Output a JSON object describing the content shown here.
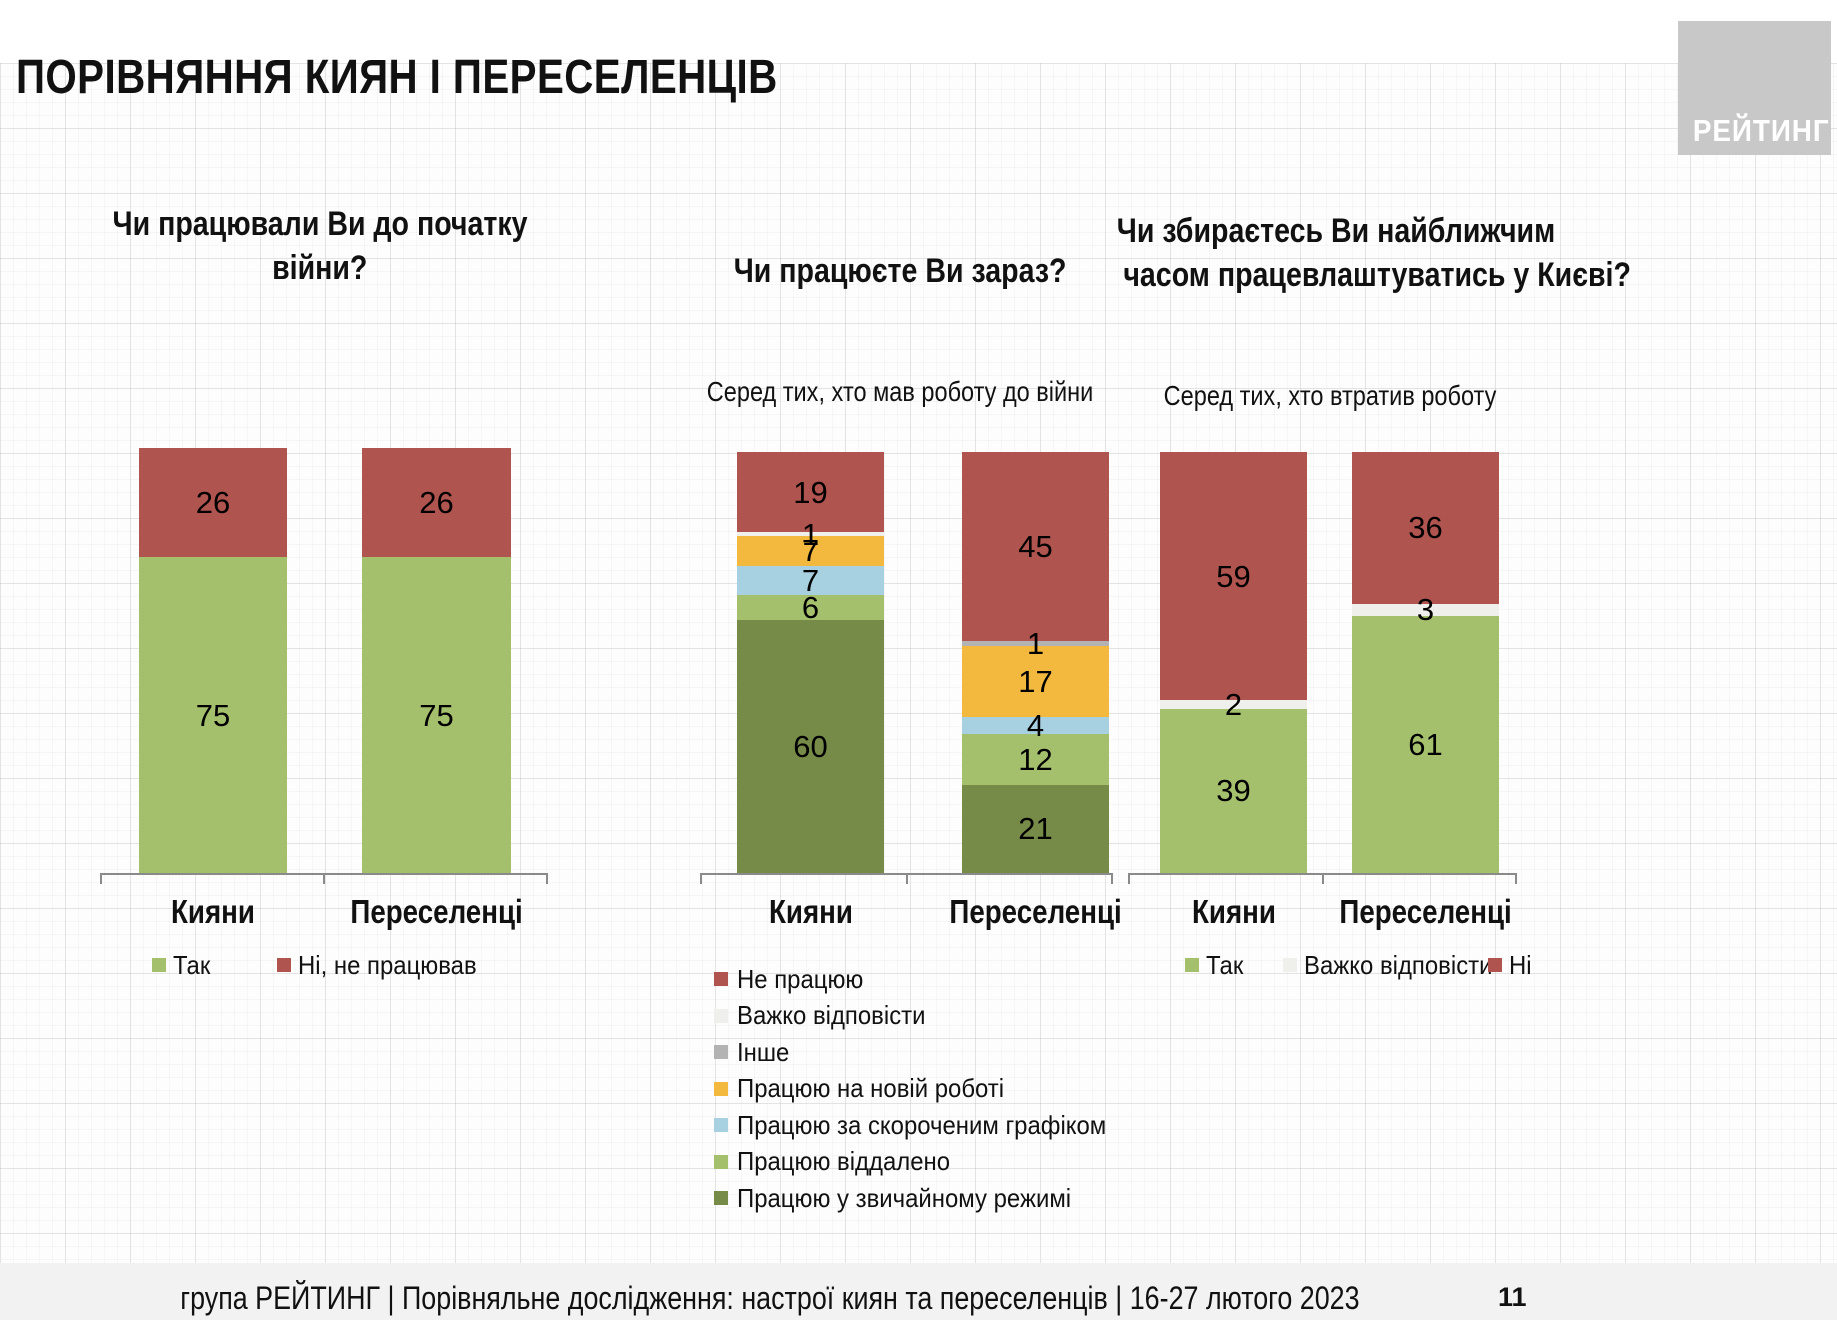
{
  "page": {
    "title": "ПОРІВНЯННЯ КИЯН І ПЕРЕСЕЛЕНЦІВ",
    "logo_text": "РЕЙТИНГ",
    "footer": "група РЕЙТИНГ | Порівняльне дослідження: настрої киян та переселенців | 16-27 лютого 2023",
    "page_number": "11"
  },
  "colors": {
    "red": "#b0544f",
    "green_light": "#a4c06c",
    "green_dark": "#768b48",
    "yellow": "#f2b93e",
    "blue_light": "#a7d0e0",
    "offwhite": "#efefec",
    "gray": "#b3b3b3",
    "logo_gray": "#c8c8c8"
  },
  "chart_data": [
    {
      "type": "bar",
      "stacked": true,
      "title": "Чи працювали Ви до початку війни?",
      "title_lines": "Чи працювали Ви до початку\nвійни?",
      "subtitle": "",
      "categories": [
        "Кияни",
        "Переселенці"
      ],
      "ylim": [
        0,
        100
      ],
      "grid": false,
      "series_top_to_bottom": [
        {
          "name": "Ні, не працював",
          "color": "#b0544f",
          "values": [
            26,
            26
          ]
        },
        {
          "name": "Так",
          "color": "#a4c06c",
          "values": [
            75,
            75
          ]
        }
      ],
      "legend": {
        "position": "bottom-horizontal",
        "items": [
          {
            "label": "Так",
            "color": "#a4c06c"
          },
          {
            "label": "Ні, не працював",
            "color": "#b0544f"
          }
        ]
      }
    },
    {
      "type": "bar",
      "stacked": true,
      "title": "Чи працюєте Ви зараз?",
      "title_lines": "Чи працюєте Ви зараз?",
      "subtitle": "Серед тих, хто мав роботу до війни",
      "categories": [
        "Кияни",
        "Переселенці"
      ],
      "ylim": [
        0,
        100
      ],
      "grid": false,
      "series_top_to_bottom": [
        {
          "name": "Не працюю",
          "color": "#b0544f",
          "values": [
            19,
            45
          ]
        },
        {
          "name": "Важко відповісти",
          "color": "#efefec",
          "values": [
            1,
            0
          ]
        },
        {
          "name": "Інше",
          "color": "#b3b3b3",
          "values": [
            0,
            1
          ]
        },
        {
          "name": "Працюю на новій роботі",
          "color": "#f2b93e",
          "values": [
            7,
            17
          ]
        },
        {
          "name": "Працюю за скороченим графіком",
          "color": "#a7d0e0",
          "values": [
            7,
            4
          ]
        },
        {
          "name": "Працюю віддалено",
          "color": "#a4c06c",
          "values": [
            6,
            12
          ]
        },
        {
          "name": "Працюю у звичайному режимі",
          "color": "#768b48",
          "values": [
            60,
            21
          ]
        }
      ],
      "legend": {
        "position": "bottom-vertical",
        "items": [
          {
            "label": "Не працюю",
            "color": "#b0544f"
          },
          {
            "label": "Важко відповісти",
            "color": "#efefec"
          },
          {
            "label": "Інше",
            "color": "#b3b3b3"
          },
          {
            "label": "Працюю на новій роботі",
            "color": "#f2b93e"
          },
          {
            "label": "Працюю за скороченим графіком",
            "color": "#a7d0e0"
          },
          {
            "label": "Працюю віддалено",
            "color": "#a4c06c"
          },
          {
            "label": "Працюю у звичайному режимі",
            "color": "#768b48"
          }
        ]
      }
    },
    {
      "type": "bar",
      "stacked": true,
      "title": "Чи збираєтесь Ви найближчим часом працевлаштуватись у Києві?",
      "title_lines": "Чи збираєтесь Ви найближчим\nчасом працевлаштуватись у Києві?",
      "subtitle": "Серед тих, хто втратив роботу",
      "categories": [
        "Кияни",
        "Переселенці"
      ],
      "ylim": [
        0,
        100
      ],
      "grid": false,
      "series_top_to_bottom": [
        {
          "name": "Ні",
          "color": "#b0544f",
          "values": [
            59,
            36
          ]
        },
        {
          "name": "Важко відповісти",
          "color": "#efefec",
          "values": [
            2,
            3
          ]
        },
        {
          "name": "Так",
          "color": "#a4c06c",
          "values": [
            39,
            61
          ]
        }
      ],
      "legend": {
        "position": "bottom-horizontal",
        "items": [
          {
            "label": "Так",
            "color": "#a4c06c"
          },
          {
            "label": "Важко відповісти",
            "color": "#efefec"
          },
          {
            "label": "Ні",
            "color": "#b0544f"
          }
        ]
      }
    }
  ]
}
